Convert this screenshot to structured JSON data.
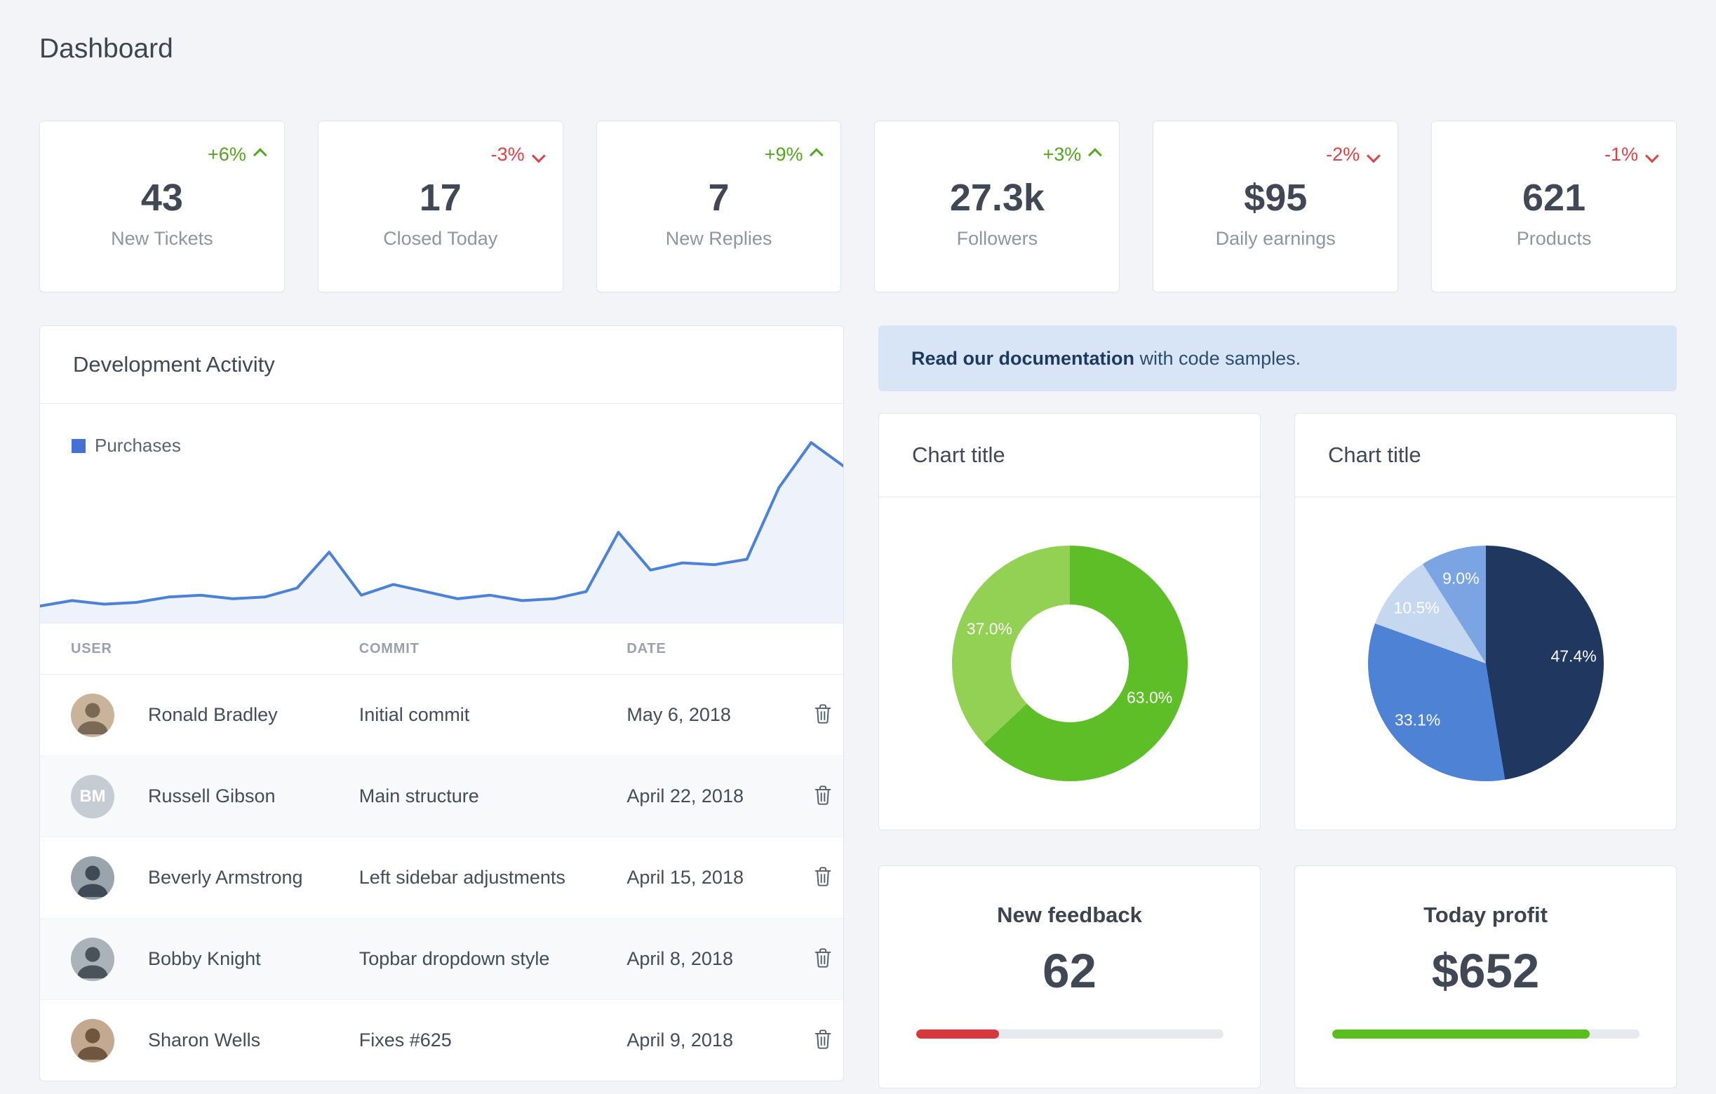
{
  "page": {
    "title": "Dashboard"
  },
  "stats": [
    {
      "delta": "+6%",
      "direction": "up",
      "value": "43",
      "label": "New Tickets"
    },
    {
      "delta": "-3%",
      "direction": "down",
      "value": "17",
      "label": "Closed Today"
    },
    {
      "delta": "+9%",
      "direction": "up",
      "value": "7",
      "label": "New Replies"
    },
    {
      "delta": "+3%",
      "direction": "up",
      "value": "27.3k",
      "label": "Followers"
    },
    {
      "delta": "-2%",
      "direction": "down",
      "value": "$95",
      "label": "Daily earnings"
    },
    {
      "delta": "-1%",
      "direction": "down",
      "value": "621",
      "label": "Products"
    }
  ],
  "dev_panel": {
    "title": "Development Activity",
    "legend": "Purchases",
    "table": {
      "headers": [
        "USER",
        "COMMIT",
        "DATE"
      ],
      "rows": [
        {
          "user": "Ronald Bradley",
          "commit": "Initial commit",
          "date": "May 6, 2018",
          "avatar": {
            "kind": "photo",
            "bg": "#c9b39a",
            "fg": "#7a6a55"
          }
        },
        {
          "user": "Russell Gibson",
          "commit": "Main structure",
          "date": "April 22, 2018",
          "avatar": {
            "kind": "initials",
            "text": "BM",
            "bg": "#c6ccd4",
            "fg": "#ffffff"
          }
        },
        {
          "user": "Beverly Armstrong",
          "commit": "Left sidebar adjustments",
          "date": "April 15, 2018",
          "avatar": {
            "kind": "photo",
            "bg": "#9aa4ad",
            "fg": "#3e4a55"
          }
        },
        {
          "user": "Bobby Knight",
          "commit": "Topbar dropdown style",
          "date": "April 8, 2018",
          "avatar": {
            "kind": "photo",
            "bg": "#aab2ba",
            "fg": "#4a525c"
          }
        },
        {
          "user": "Sharon Wells",
          "commit": "Fixes #625",
          "date": "April 9, 2018",
          "avatar": {
            "kind": "photo",
            "bg": "#c2a98f",
            "fg": "#6e563f"
          }
        }
      ]
    }
  },
  "alert": {
    "bold": "Read our documentation",
    "rest": " with code samples."
  },
  "chart_cards": [
    {
      "title": "Chart title"
    },
    {
      "title": "Chart title"
    }
  ],
  "feedback_card": {
    "title": "New feedback",
    "value": "62",
    "progress_pct": 27,
    "bar_color": "#d7383e"
  },
  "profit_card": {
    "title": "Today profit",
    "value": "$652",
    "progress_pct": 84,
    "bar_color": "#5abe1f"
  },
  "chart_data": [
    {
      "type": "area",
      "name": "development-activity-purchases",
      "series": [
        {
          "name": "Purchases",
          "values": [
            7,
            10,
            8,
            9,
            12,
            13,
            11,
            12,
            17,
            37,
            13,
            19,
            15,
            11,
            13,
            10,
            11,
            15,
            48,
            27,
            31,
            30,
            33,
            73,
            98,
            85
          ]
        }
      ],
      "ylim": [
        0,
        100
      ],
      "grid": false,
      "axes_hidden": true,
      "legend_position": "top-left",
      "line_color": "#4b82d8",
      "fill_color": "rgba(75,130,216,0.10)",
      "legend_color": "#4472d4"
    },
    {
      "type": "donut",
      "name": "green-donut",
      "title": "Chart title",
      "slices": [
        {
          "label": "63.0%",
          "value": 63.0,
          "color": "#5ebe28"
        },
        {
          "label": "37.0%",
          "value": 37.0,
          "color": "#93d155"
        }
      ]
    },
    {
      "type": "pie",
      "name": "blue-pie",
      "title": "Chart title",
      "slices": [
        {
          "label": "47.4%",
          "value": 47.4,
          "color": "#20375f"
        },
        {
          "label": "33.1%",
          "value": 33.1,
          "color": "#4d82d5"
        },
        {
          "label": "10.5%",
          "value": 10.5,
          "color": "#c6d7f0"
        },
        {
          "label": "9.0%",
          "value": 9.0,
          "color": "#7ba4e2"
        }
      ]
    }
  ]
}
